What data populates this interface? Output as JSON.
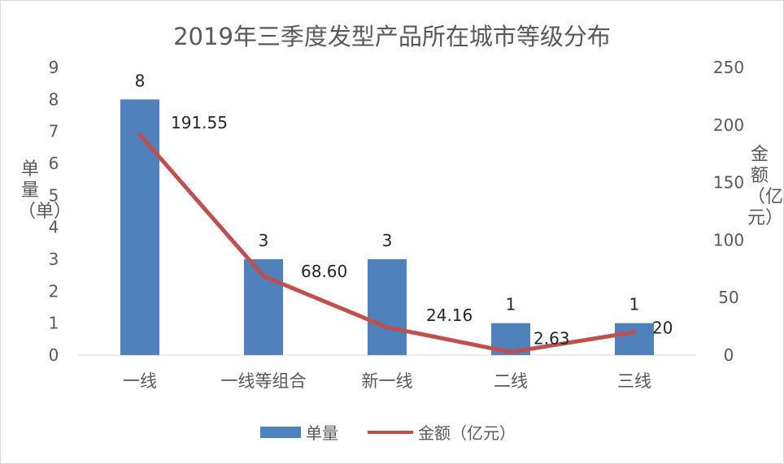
{
  "chart_data": {
    "type": "bar+line",
    "title": "2019年三季度发型产品所在城市等级分布",
    "categories": [
      "一线",
      "一线等组合",
      "新一线",
      "二线",
      "三线"
    ],
    "series": [
      {
        "name": "单量",
        "type": "bar",
        "axis": "left",
        "values": [
          8,
          3,
          3,
          1,
          1
        ],
        "labels": [
          "8",
          "3",
          "3",
          "1",
          "1"
        ],
        "color": "#4f81bd"
      },
      {
        "name": "金额（亿元）",
        "type": "line",
        "axis": "right",
        "values": [
          191.55,
          68.6,
          24.16,
          2.63,
          20
        ],
        "labels": [
          "191.55",
          "68.60",
          "24.16",
          "2.63",
          "20"
        ],
        "color": "#c0504d"
      }
    ],
    "ylabel_left": "单量（单）",
    "ylabel_right": "金额（亿元）",
    "ylim_left": [
      0,
      9
    ],
    "yticks_left": [
      "0",
      "1",
      "2",
      "3",
      "4",
      "5",
      "6",
      "7",
      "8",
      "9"
    ],
    "ylim_right": [
      0,
      250
    ],
    "yticks_right": [
      "0",
      "50",
      "100",
      "150",
      "200",
      "250"
    ],
    "grid": false,
    "legend_position": "bottom"
  }
}
